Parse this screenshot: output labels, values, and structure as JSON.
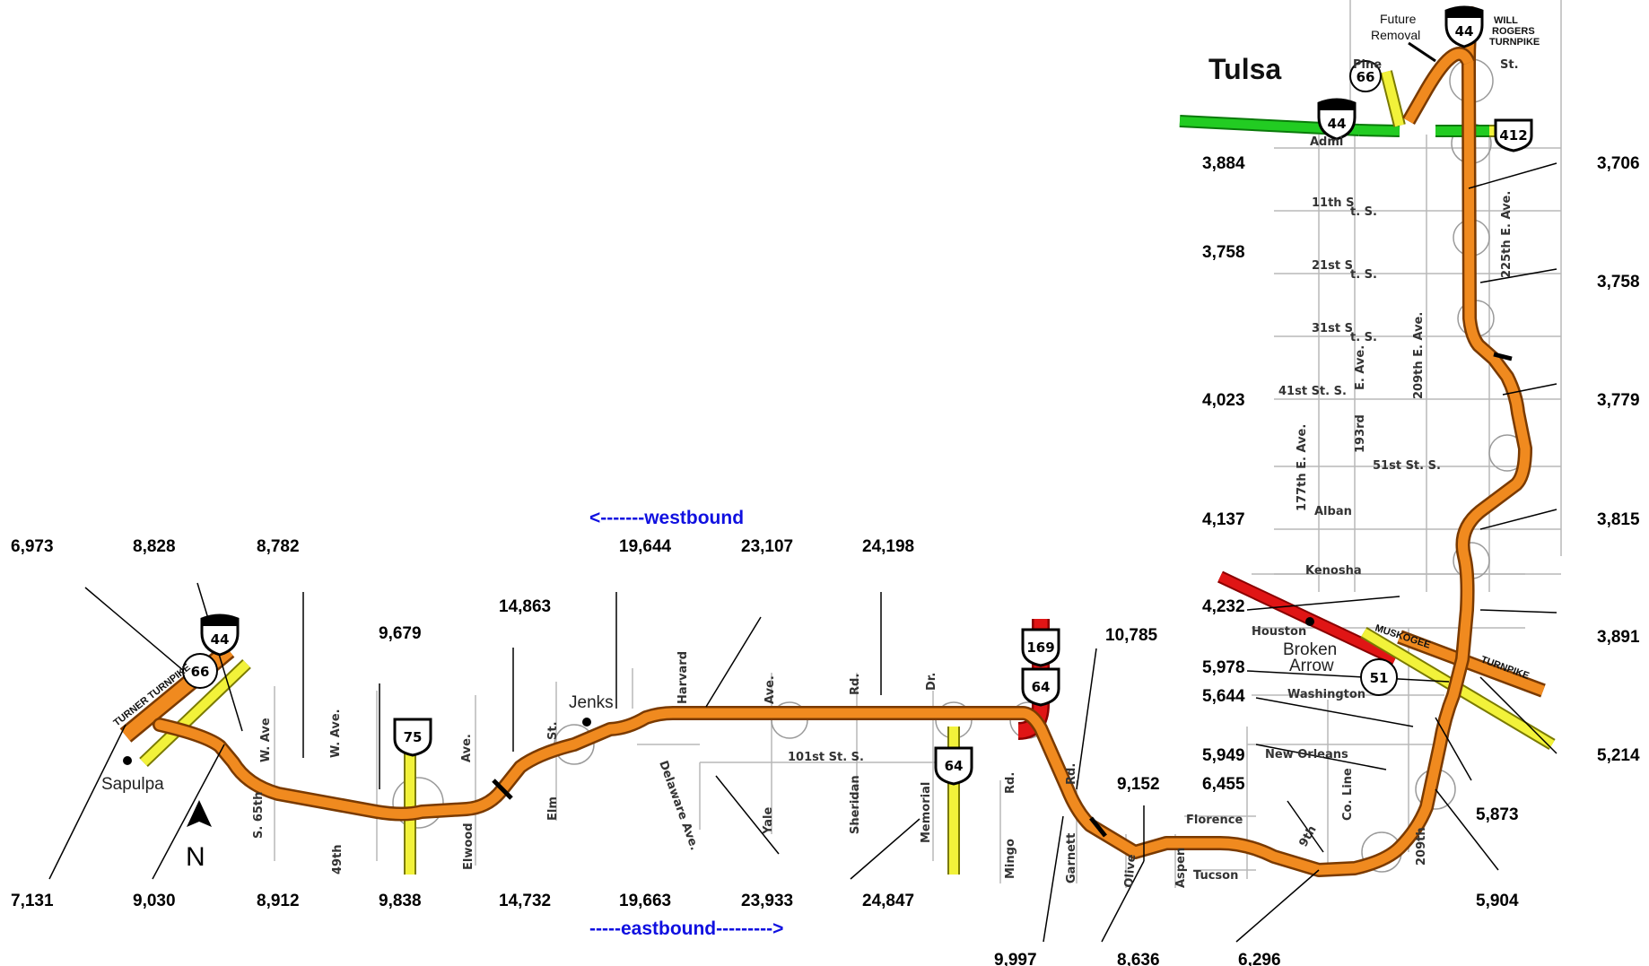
{
  "map": {
    "city_tulsa": "Tulsa",
    "city_sapulpa": "Sapulpa",
    "city_jenks": "Jenks",
    "city_broken_arrow_1": "Broken",
    "city_broken_arrow_2": "Arrow",
    "direction_westbound": "<-------westbound",
    "direction_eastbound": "-----eastbound--------->",
    "north_arrow_label": "N",
    "future_removal_1": "Future",
    "future_removal_2": "Removal",
    "will_rogers_1": "WILL",
    "will_rogers_2": "ROGERS",
    "will_rogers_3": "TURNPIKE",
    "turner_turnpike": "TURNER TURNPIKE",
    "muskogee_turnpike_1": "MUSKOGEE",
    "muskogee_turnpike_2": "TURNPIKE",
    "colors": {
      "highway": "#f08a1f",
      "highway_edge": "#7a3a00",
      "toll_yellow": "#f2f23a",
      "green_route": "#22cc22",
      "red_route": "#e01515",
      "blue_text": "#1010e0",
      "street_grey": "#b8b8b8"
    },
    "shields": {
      "i44_west": "44",
      "i44_tulsa": "44",
      "i44_top": "44",
      "us66_west": "66",
      "us66_tulsa": "66",
      "us75": "75",
      "us64_memorial": "64",
      "us169": "169",
      "us64_east": "64",
      "us412": "412",
      "sh51": "51"
    },
    "streets": {
      "w_ave": "W. Ave",
      "s_65th": "S. 65th",
      "w_ave_2": "W. Ave.",
      "s_49th": "49th",
      "ave_1": "Ave.",
      "elwood": "Elwood",
      "st_1": "St.",
      "elm": "Elm",
      "harvard": "Harvard",
      "delaware": "Delaware Ave.",
      "ave_yale": "Ave.",
      "yale": "Yale",
      "rd_1": "Rd.",
      "st_101": "101st St. S.",
      "sheridan": "Sheridan",
      "dr_1": "Dr.",
      "memorial": "Memorial",
      "rd_mingo": "Rd.",
      "mingo": "Mingo",
      "rd_garnett": "Rd.",
      "garnett": "Garnett",
      "olive": "Olive",
      "aspen": "Aspen",
      "tucson": "Tucson",
      "florence": "Florence",
      "st_9th": "9th",
      "co_line": "Co. Line",
      "s_209th_bottom": "209th",
      "new_orleans": "New Orleans",
      "washington": "Washington",
      "houston": "Houston",
      "kenosha": "Kenosha",
      "albany": "Alban",
      "s_177th": "177th E. Ave.",
      "s_193rd": "193rd",
      "st_51st": "51st St. S.",
      "st_41st": "41st St. S.",
      "e_ave": "E. Ave.",
      "s_209th": "209th E. Ave.",
      "st_31st": "31st S",
      "st_21st": "21st S",
      "st_11th": "11th S",
      "s_1": "t. S.",
      "s_2": "t. S.",
      "s_3": "t. S.",
      "s_225th": "225th E. Ave.",
      "admiral": "Admi",
      "pine": "Pine",
      "pine_st": "St."
    }
  },
  "counts": {
    "c_6973": "6,973",
    "c_8828": "8,828",
    "c_8782": "8,782",
    "c_9679": "9,679",
    "c_14863": "14,863",
    "c_19644": "19,644",
    "c_23107": "23,107",
    "c_24198": "24,198",
    "c_10785": "10,785",
    "c_7131": "7,131",
    "c_9030": "9,030",
    "c_8912": "8,912",
    "c_9838": "9,838",
    "c_14732": "14,732",
    "c_19663": "19,663",
    "c_23933": "23,933",
    "c_24847": "24,847",
    "c_9997": "9,997",
    "c_9152": "9,152",
    "c_8636": "8,636",
    "c_6296": "6,296",
    "c_6455": "6,455",
    "c_5949": "5,949",
    "c_5644": "5,644",
    "c_5978": "5,978",
    "c_4232": "4,232",
    "c_4137": "4,137",
    "c_4023": "4,023",
    "c_3758_l": "3,758",
    "c_3884": "3,884",
    "c_3706": "3,706",
    "c_3758_r": "3,758",
    "c_3779": "3,779",
    "c_3815": "3,815",
    "c_3891": "3,891",
    "c_5214": "5,214",
    "c_5873": "5,873",
    "c_5904": "5,904"
  }
}
